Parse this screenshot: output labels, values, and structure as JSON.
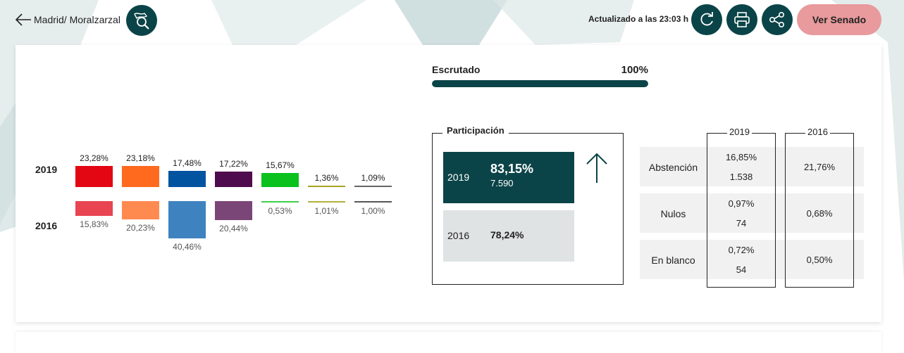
{
  "header": {
    "breadcrumb": "Madrid/ Moralzarzal",
    "updated": "Actualizado a las 23:03 h",
    "senado_button": "Ver Senado"
  },
  "results": {
    "year_new": "2019",
    "year_old": "2016",
    "parties": [
      {
        "pct_2019": "23,28%",
        "pct_2016": "15,83%",
        "val_2019": 23.28,
        "val_2016": 15.83,
        "color_2019": "#e30613",
        "color_2016": "#e84452"
      },
      {
        "pct_2019": "23,18%",
        "pct_2016": "20,23%",
        "val_2019": 23.18,
        "val_2016": 20.23,
        "color_2019": "#ff6a1f",
        "color_2016": "#ff8a50"
      },
      {
        "pct_2019": "17,48%",
        "pct_2016": "40,46%",
        "val_2019": 17.48,
        "val_2016": 40.46,
        "color_2019": "#0254a0",
        "color_2016": "#3f82c0"
      },
      {
        "pct_2019": "17,22%",
        "pct_2016": "20,44%",
        "val_2019": 17.22,
        "val_2016": 20.44,
        "color_2019": "#4e0c4f",
        "color_2016": "#7a4577"
      },
      {
        "pct_2019": "15,67%",
        "pct_2016": "0,53%",
        "val_2019": 15.67,
        "val_2016": 0.53,
        "color_2019": "#0ac11e",
        "color_2016": "#3ecf4b"
      },
      {
        "pct_2019": "1,36%",
        "pct_2016": "1,01%",
        "val_2019": 1.36,
        "val_2016": 1.01,
        "color_2019": "#a7a320",
        "color_2016": "#b5b03a"
      },
      {
        "pct_2019": "1,09%",
        "pct_2016": "1,00%",
        "val_2019": 1.09,
        "val_2016": 1.0,
        "color_2019": "#666666",
        "color_2016": "#555555"
      }
    ]
  },
  "escrutado": {
    "label": "Escrutado",
    "value": "100%",
    "fraction": 1.0
  },
  "participacion": {
    "title": "Participación",
    "y2019_label": "2019",
    "y2019_pct": "83,15%",
    "y2019_votes": "7.590",
    "y2016_label": "2016",
    "y2016_pct": "78,24%",
    "trend_icon": "arrow-up-icon"
  },
  "stats": {
    "col_2019": "2019",
    "col_2016": "2016",
    "rows": [
      {
        "label": "Abstención",
        "pct_2019": "16,85%",
        "count_2019": "1.538",
        "pct_2016": "21,76%"
      },
      {
        "label": "Nulos",
        "pct_2019": "0,97%",
        "count_2019": "74",
        "pct_2016": "0,68%"
      },
      {
        "label": "En blanco",
        "pct_2019": "0,72%",
        "count_2019": "54",
        "pct_2016": "0,50%"
      }
    ]
  },
  "colors": {
    "accent": "#0b4448",
    "senado": "#e89a9c"
  }
}
